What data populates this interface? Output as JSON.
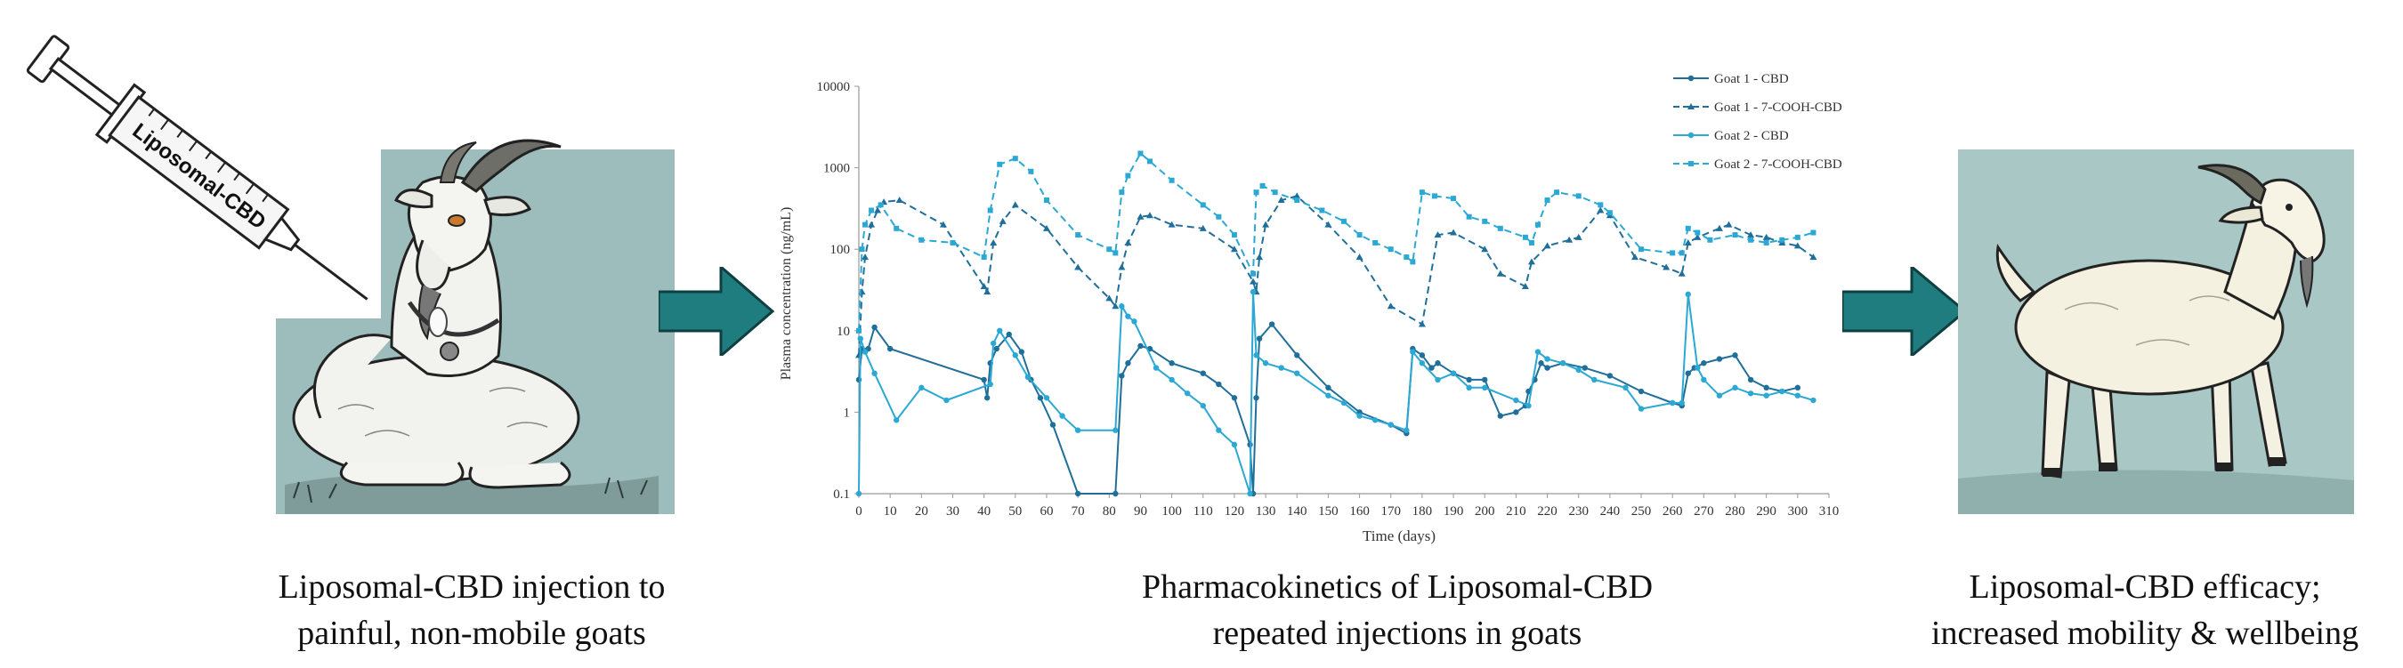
{
  "left_panel": {
    "syringe_label": "Liposomal-CBD",
    "caption": [
      "Liposomal-CBD injection to",
      "painful, non-mobile goats"
    ]
  },
  "center_panel": {
    "caption": [
      "Pharmacokinetics of Liposomal-CBD",
      "repeated injections in goats"
    ]
  },
  "right_panel": {
    "caption": [
      "Liposomal-CBD efficacy;",
      "increased mobility & wellbeing"
    ]
  },
  "colors": {
    "goat1": "#1f6f9a",
    "goat2": "#2ba8d4",
    "arrow": "#1f7d80",
    "panel_bg": "#9dbdbd",
    "panel_bg_right": "#a9c7c4"
  },
  "chart_data": {
    "type": "line",
    "xlabel": "Time (days)",
    "ylabel": "Plasma concentration (ng/mL)",
    "xlim": [
      0,
      310
    ],
    "xticks": [
      0,
      10,
      20,
      30,
      40,
      50,
      60,
      70,
      80,
      90,
      100,
      110,
      120,
      130,
      140,
      150,
      160,
      170,
      180,
      190,
      200,
      210,
      220,
      230,
      240,
      250,
      260,
      270,
      280,
      290,
      300,
      310
    ],
    "yscale": "log",
    "ylim": [
      0.1,
      10000
    ],
    "yticks": [
      "0.1",
      "1",
      "10",
      "100",
      "1000",
      "10000"
    ],
    "legend_position": "top-right",
    "series": [
      {
        "name": "Goat 1 - CBD",
        "style": "solid",
        "marker": "circle",
        "color_key": "goat1",
        "points": [
          [
            0,
            2.5
          ],
          [
            1,
            6
          ],
          [
            3,
            6
          ],
          [
            5,
            11
          ],
          [
            10,
            6
          ],
          [
            40,
            2.5
          ],
          [
            41,
            1.5
          ],
          [
            42,
            4
          ],
          [
            44,
            6
          ],
          [
            48,
            9
          ],
          [
            52,
            5.5
          ],
          [
            55,
            2.5
          ],
          [
            58,
            1.5
          ],
          [
            62,
            0.7
          ],
          [
            70,
            0.1
          ],
          [
            82,
            0.1
          ],
          [
            84,
            2.8
          ],
          [
            86,
            4
          ],
          [
            90,
            6.5
          ],
          [
            93,
            6
          ],
          [
            100,
            4
          ],
          [
            110,
            3
          ],
          [
            115,
            2.2
          ],
          [
            120,
            1.5
          ],
          [
            125,
            0.4
          ],
          [
            126,
            0.1
          ],
          [
            127,
            1.5
          ],
          [
            128,
            8
          ],
          [
            132,
            12
          ],
          [
            140,
            5
          ],
          [
            150,
            2
          ],
          [
            160,
            1
          ],
          [
            170,
            0.7
          ],
          [
            175,
            0.55
          ],
          [
            177,
            6
          ],
          [
            180,
            5
          ],
          [
            183,
            3.5
          ],
          [
            185,
            4
          ],
          [
            190,
            3
          ],
          [
            195,
            2.5
          ],
          [
            200,
            2.5
          ],
          [
            205,
            0.9
          ],
          [
            210,
            1
          ],
          [
            213,
            1.2
          ],
          [
            214,
            1.8
          ],
          [
            216,
            2.5
          ],
          [
            218,
            4
          ],
          [
            220,
            3.5
          ],
          [
            225,
            4
          ],
          [
            232,
            3.5
          ],
          [
            240,
            2.8
          ],
          [
            250,
            1.8
          ],
          [
            260,
            1.3
          ],
          [
            263,
            1.2
          ],
          [
            265,
            3
          ],
          [
            267,
            3.5
          ],
          [
            270,
            4
          ],
          [
            275,
            4.5
          ],
          [
            280,
            5
          ],
          [
            285,
            2.5
          ],
          [
            290,
            2
          ],
          [
            295,
            1.8
          ],
          [
            300,
            2
          ]
        ]
      },
      {
        "name": "Goat 1 - 7-COOH-CBD",
        "style": "dashed",
        "marker": "triangle",
        "color_key": "goat1",
        "points": [
          [
            0,
            5
          ],
          [
            1,
            30
          ],
          [
            2,
            80
          ],
          [
            4,
            200
          ],
          [
            6,
            300
          ],
          [
            8,
            380
          ],
          [
            13,
            400
          ],
          [
            27,
            200
          ],
          [
            40,
            35
          ],
          [
            41,
            30
          ],
          [
            43,
            120
          ],
          [
            46,
            220
          ],
          [
            50,
            350
          ],
          [
            60,
            180
          ],
          [
            70,
            60
          ],
          [
            80,
            25
          ],
          [
            82,
            20
          ],
          [
            84,
            60
          ],
          [
            86,
            120
          ],
          [
            90,
            250
          ],
          [
            93,
            260
          ],
          [
            100,
            200
          ],
          [
            110,
            180
          ],
          [
            120,
            100
          ],
          [
            126,
            40
          ],
          [
            127,
            30
          ],
          [
            128,
            80
          ],
          [
            130,
            200
          ],
          [
            135,
            400
          ],
          [
            140,
            450
          ],
          [
            150,
            200
          ],
          [
            160,
            80
          ],
          [
            170,
            20
          ],
          [
            180,
            12
          ],
          [
            185,
            150
          ],
          [
            190,
            160
          ],
          [
            200,
            100
          ],
          [
            205,
            50
          ],
          [
            213,
            35
          ],
          [
            215,
            70
          ],
          [
            220,
            110
          ],
          [
            227,
            130
          ],
          [
            230,
            140
          ],
          [
            237,
            300
          ],
          [
            240,
            260
          ],
          [
            248,
            80
          ],
          [
            258,
            60
          ],
          [
            263,
            50
          ],
          [
            265,
            120
          ],
          [
            268,
            140
          ],
          [
            275,
            180
          ],
          [
            278,
            200
          ],
          [
            285,
            150
          ],
          [
            290,
            140
          ],
          [
            295,
            120
          ],
          [
            300,
            110
          ],
          [
            305,
            80
          ]
        ]
      },
      {
        "name": "Goat 2 - CBD",
        "style": "solid",
        "marker": "circle",
        "color_key": "goat2",
        "points": [
          [
            0,
            0.1
          ],
          [
            0.5,
            8
          ],
          [
            2,
            5.5
          ],
          [
            5,
            3
          ],
          [
            12,
            0.8
          ],
          [
            20,
            2
          ],
          [
            28,
            1.4
          ],
          [
            42,
            2.2
          ],
          [
            43,
            7
          ],
          [
            45,
            10
          ],
          [
            50,
            5
          ],
          [
            54,
            2.7
          ],
          [
            60,
            1.5
          ],
          [
            65,
            0.9
          ],
          [
            70,
            0.6
          ],
          [
            82,
            0.6
          ],
          [
            84,
            20
          ],
          [
            86,
            15
          ],
          [
            88,
            13
          ],
          [
            95,
            3.5
          ],
          [
            100,
            2.5
          ],
          [
            105,
            1.7
          ],
          [
            110,
            1.2
          ],
          [
            115,
            0.6
          ],
          [
            120,
            0.4
          ],
          [
            125,
            0.1
          ],
          [
            126,
            30
          ],
          [
            127,
            5
          ],
          [
            130,
            4
          ],
          [
            135,
            3.5
          ],
          [
            140,
            3
          ],
          [
            150,
            1.6
          ],
          [
            155,
            1.3
          ],
          [
            160,
            0.9
          ],
          [
            165,
            0.8
          ],
          [
            170,
            0.7
          ],
          [
            175,
            0.6
          ],
          [
            177,
            5.5
          ],
          [
            180,
            4
          ],
          [
            185,
            2.5
          ],
          [
            190,
            3
          ],
          [
            195,
            2
          ],
          [
            200,
            2
          ],
          [
            210,
            1.4
          ],
          [
            214,
            1.2
          ],
          [
            217,
            5.5
          ],
          [
            220,
            4.5
          ],
          [
            225,
            4
          ],
          [
            230,
            3.3
          ],
          [
            235,
            2.5
          ],
          [
            245,
            2
          ],
          [
            250,
            1.1
          ],
          [
            260,
            1.3
          ],
          [
            263,
            1.3
          ],
          [
            265,
            28
          ],
          [
            268,
            3.5
          ],
          [
            270,
            2.5
          ],
          [
            275,
            1.6
          ],
          [
            280,
            2
          ],
          [
            285,
            1.7
          ],
          [
            290,
            1.6
          ],
          [
            295,
            1.8
          ],
          [
            300,
            1.6
          ],
          [
            305,
            1.4
          ]
        ]
      },
      {
        "name": "Goat 2 - 7-COOH-CBD",
        "style": "dashed",
        "marker": "square",
        "color_key": "goat2",
        "points": [
          [
            0,
            10
          ],
          [
            1,
            100
          ],
          [
            2,
            200
          ],
          [
            4,
            300
          ],
          [
            7,
            350
          ],
          [
            12,
            180
          ],
          [
            20,
            130
          ],
          [
            30,
            120
          ],
          [
            40,
            80
          ],
          [
            42,
            300
          ],
          [
            45,
            1100
          ],
          [
            50,
            1300
          ],
          [
            55,
            900
          ],
          [
            60,
            400
          ],
          [
            70,
            150
          ],
          [
            80,
            100
          ],
          [
            82,
            90
          ],
          [
            84,
            500
          ],
          [
            86,
            800
          ],
          [
            90,
            1500
          ],
          [
            93,
            1200
          ],
          [
            100,
            700
          ],
          [
            110,
            350
          ],
          [
            115,
            250
          ],
          [
            120,
            150
          ],
          [
            126,
            50
          ],
          [
            127,
            500
          ],
          [
            129,
            600
          ],
          [
            133,
            500
          ],
          [
            140,
            400
          ],
          [
            148,
            300
          ],
          [
            155,
            220
          ],
          [
            160,
            150
          ],
          [
            165,
            120
          ],
          [
            170,
            100
          ],
          [
            175,
            80
          ],
          [
            177,
            70
          ],
          [
            180,
            500
          ],
          [
            184,
            450
          ],
          [
            190,
            420
          ],
          [
            195,
            250
          ],
          [
            200,
            220
          ],
          [
            205,
            180
          ],
          [
            213,
            140
          ],
          [
            215,
            120
          ],
          [
            217,
            200
          ],
          [
            220,
            400
          ],
          [
            223,
            500
          ],
          [
            230,
            450
          ],
          [
            237,
            350
          ],
          [
            240,
            280
          ],
          [
            250,
            100
          ],
          [
            260,
            90
          ],
          [
            263,
            90
          ],
          [
            265,
            180
          ],
          [
            268,
            160
          ],
          [
            272,
            130
          ],
          [
            280,
            150
          ],
          [
            285,
            130
          ],
          [
            290,
            120
          ],
          [
            295,
            130
          ],
          [
            300,
            140
          ],
          [
            305,
            160
          ]
        ]
      }
    ]
  }
}
